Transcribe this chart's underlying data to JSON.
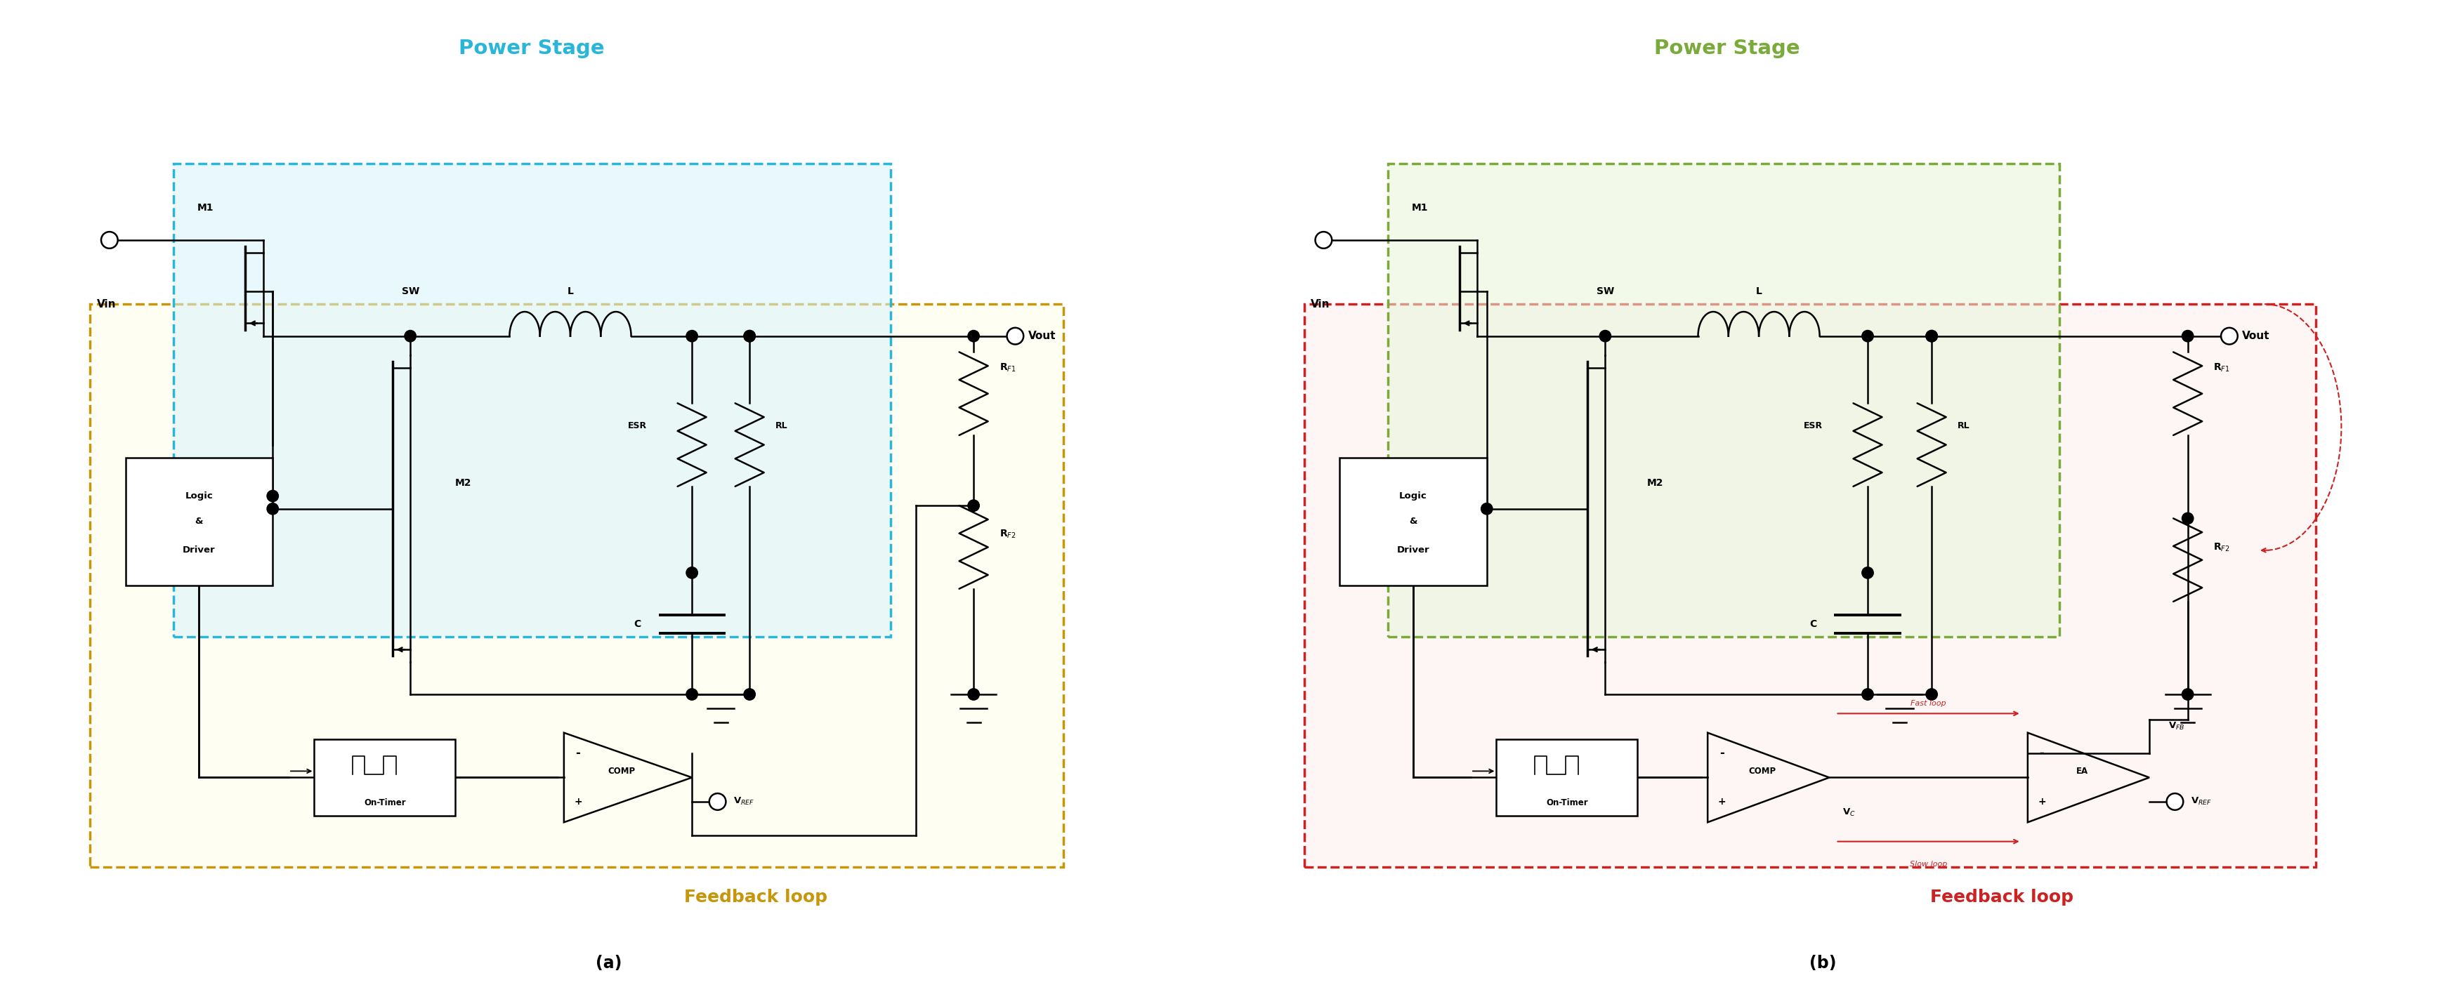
{
  "title_a": "Power Stage",
  "title_b": "Power Stage",
  "label_a": "(a)",
  "label_b": "(b)",
  "feedback_label_a": "Feedback loop",
  "feedback_label_b": "Feedback loop",
  "power_stage_color_a": "#29b6d8",
  "power_stage_color_b": "#7aab3a",
  "feedback_color_a": "#c8960a",
  "feedback_color_b": "#cc2222",
  "fast_loop_color": "#cc2222",
  "bg_color": "#ffffff",
  "ps_fill_a": "#d8f4fa",
  "ps_fill_b": "#e8f5d8",
  "fb_fill_a": "#fefee8",
  "fb_fill_b": "#fde8e8"
}
